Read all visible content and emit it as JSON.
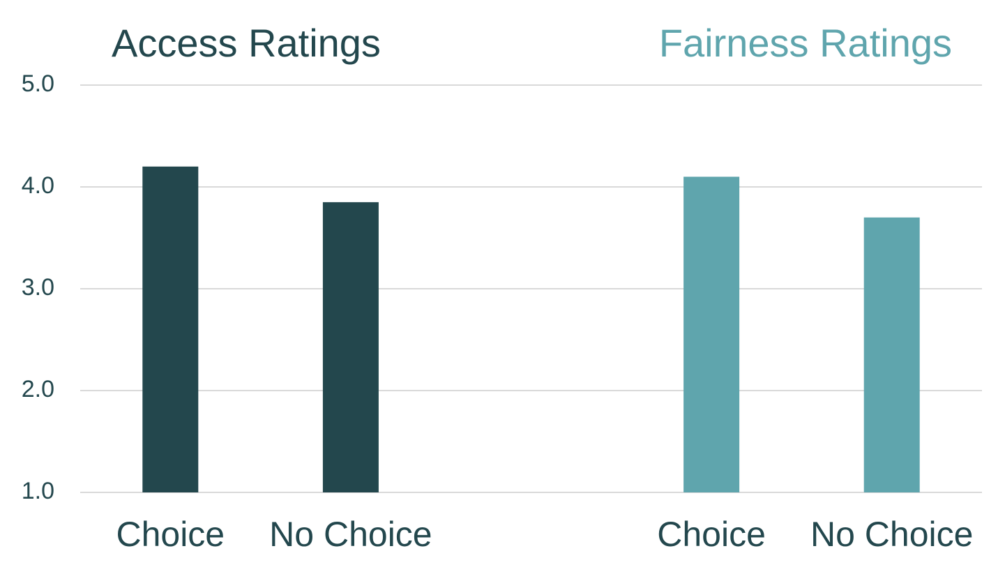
{
  "chart_data": {
    "type": "bar",
    "categories": [
      "Choice",
      "No Choice",
      null,
      "Choice",
      "No Choice"
    ],
    "series": [
      {
        "name": "Access Ratings",
        "color": "#23474d",
        "values": [
          4.2,
          3.85,
          null,
          null,
          null
        ]
      },
      {
        "name": "Fairness Ratings",
        "color": "#5fa5ad",
        "values": [
          null,
          null,
          null,
          4.1,
          3.7
        ]
      }
    ],
    "ylim": [
      1,
      5
    ],
    "yticks": [
      {
        "value": 1,
        "label": "1.0"
      },
      {
        "value": 2,
        "label": "2.0"
      },
      {
        "value": 3,
        "label": "3.0"
      },
      {
        "value": 4,
        "label": "4.0"
      },
      {
        "value": 5,
        "label": "5.0"
      }
    ],
    "grid": true
  }
}
